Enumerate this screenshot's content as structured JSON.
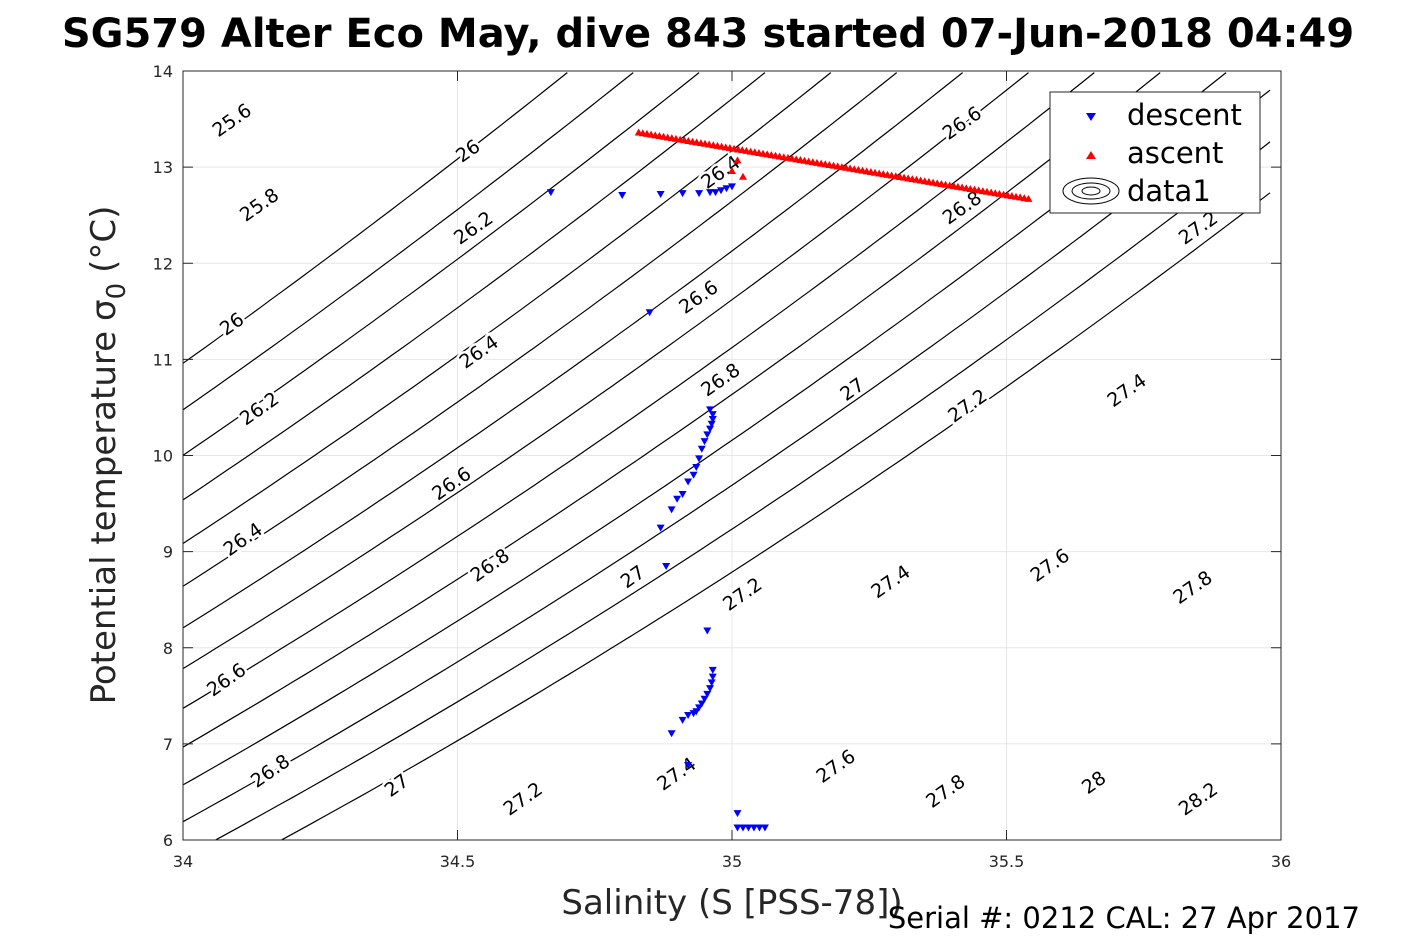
{
  "chart_data": {
    "type": "scatter",
    "title": "SG579 Alter Eco May, dive 843 started 07-Jun-2018 04:49",
    "xlabel": "Salinity (S [PSS-78])",
    "ylabel": "Potential temperature",
    "ylabel_symbol": "σ",
    "ylabel_subscript": "0",
    "ylabel_unit": "(°C)",
    "footer": "Serial #: 0212  CAL: 27 Apr 2017",
    "xlim": [
      34,
      36
    ],
    "ylim": [
      6,
      14
    ],
    "x_ticks": [
      34,
      34.5,
      35,
      35.5,
      36
    ],
    "x_tick_labels": [
      "34",
      "34.5",
      "35",
      "35.5",
      "36"
    ],
    "y_ticks": [
      6,
      7,
      8,
      9,
      10,
      11,
      12,
      13,
      14
    ],
    "y_tick_labels": [
      "6",
      "7",
      "8",
      "9",
      "10",
      "11",
      "12",
      "13",
      "14"
    ],
    "grid": true,
    "legend_position": "top-right",
    "colors": {
      "descent": "#0000ff",
      "ascent": "#ff0000",
      "contour": "#000000",
      "grid": "#e6e6e6"
    },
    "series": [
      {
        "name": "descent",
        "marker": "triangle-down",
        "color": "#0000ff",
        "points": [
          [
            34.67,
            12.74
          ],
          [
            34.8,
            12.71
          ],
          [
            34.87,
            12.72
          ],
          [
            34.91,
            12.73
          ],
          [
            34.94,
            12.73
          ],
          [
            34.96,
            12.74
          ],
          [
            34.97,
            12.74
          ],
          [
            34.98,
            12.76
          ],
          [
            34.99,
            12.78
          ],
          [
            35.0,
            12.8
          ],
          [
            34.85,
            11.49
          ],
          [
            34.96,
            10.48
          ],
          [
            34.965,
            10.43
          ],
          [
            34.965,
            10.38
          ],
          [
            34.963,
            10.33
          ],
          [
            34.96,
            10.28
          ],
          [
            34.955,
            10.22
          ],
          [
            34.95,
            10.15
          ],
          [
            34.945,
            10.07
          ],
          [
            34.94,
            9.97
          ],
          [
            34.935,
            9.88
          ],
          [
            34.93,
            9.8
          ],
          [
            34.92,
            9.73
          ],
          [
            34.91,
            9.6
          ],
          [
            34.9,
            9.55
          ],
          [
            34.89,
            9.44
          ],
          [
            34.87,
            9.25
          ],
          [
            34.88,
            8.85
          ],
          [
            34.955,
            8.18
          ],
          [
            34.965,
            7.77
          ],
          [
            34.965,
            7.7
          ],
          [
            34.963,
            7.64
          ],
          [
            34.96,
            7.58
          ],
          [
            34.955,
            7.52
          ],
          [
            34.95,
            7.47
          ],
          [
            34.945,
            7.42
          ],
          [
            34.94,
            7.38
          ],
          [
            34.935,
            7.34
          ],
          [
            34.93,
            7.32
          ],
          [
            34.92,
            7.3
          ],
          [
            34.91,
            7.25
          ],
          [
            34.89,
            7.11
          ],
          [
            34.92,
            6.78
          ],
          [
            35.01,
            6.28
          ],
          [
            35.01,
            6.13
          ],
          [
            35.02,
            6.13
          ],
          [
            35.03,
            6.13
          ],
          [
            35.04,
            6.13
          ],
          [
            35.05,
            6.13
          ],
          [
            35.06,
            6.13
          ]
        ]
      },
      {
        "name": "ascent",
        "marker": "triangle-up",
        "color": "#ff0000",
        "line": {
          "x0": 34.83,
          "y0": 13.36,
          "x1": 35.54,
          "y1": 12.67,
          "count": 95
        },
        "extra_points": [
          [
            35.01,
            13.07
          ],
          [
            35.02,
            12.9
          ],
          [
            35.0,
            12.96
          ]
        ]
      },
      {
        "name": "data1",
        "type": "contour",
        "quantity": "sigma0",
        "levels": [
          25.6,
          25.8,
          26,
          26.2,
          26.4,
          26.6,
          26.8,
          27,
          27.2,
          27.4,
          27.6,
          27.8,
          28,
          28.2
        ]
      }
    ],
    "contour_labels": [
      {
        "text": "25.6",
        "x": 34.09,
        "y": 13.48
      },
      {
        "text": "26",
        "x": 34.52,
        "y": 13.16
      },
      {
        "text": "26.6",
        "x": 35.42,
        "y": 13.45
      },
      {
        "text": "25.8",
        "x": 34.14,
        "y": 12.6
      },
      {
        "text": "26.2",
        "x": 34.53,
        "y": 12.36
      },
      {
        "text": "26.4",
        "x": 34.98,
        "y": 12.94
      },
      {
        "text": "26.8",
        "x": 35.42,
        "y": 12.57
      },
      {
        "text": "27.2",
        "x": 35.85,
        "y": 12.36
      },
      {
        "text": "26",
        "x": 34.09,
        "y": 11.36
      },
      {
        "text": "26.6",
        "x": 34.94,
        "y": 11.64
      },
      {
        "text": "26.4",
        "x": 34.54,
        "y": 11.07
      },
      {
        "text": "26.8",
        "x": 34.98,
        "y": 10.78
      },
      {
        "text": "27",
        "x": 35.22,
        "y": 10.68
      },
      {
        "text": "27.2",
        "x": 35.43,
        "y": 10.51
      },
      {
        "text": "27.4",
        "x": 35.72,
        "y": 10.67
      },
      {
        "text": "26.2",
        "x": 34.14,
        "y": 10.48
      },
      {
        "text": "26.6",
        "x": 34.49,
        "y": 9.7
      },
      {
        "text": "26.4",
        "x": 34.11,
        "y": 9.12
      },
      {
        "text": "26.8",
        "x": 34.56,
        "y": 8.85
      },
      {
        "text": "27",
        "x": 34.82,
        "y": 8.73
      },
      {
        "text": "27.2",
        "x": 35.02,
        "y": 8.55
      },
      {
        "text": "27.4",
        "x": 35.29,
        "y": 8.68
      },
      {
        "text": "27.6",
        "x": 35.58,
        "y": 8.85
      },
      {
        "text": "27.8",
        "x": 35.84,
        "y": 8.62
      },
      {
        "text": "26.6",
        "x": 34.08,
        "y": 7.66
      },
      {
        "text": "26.8",
        "x": 34.16,
        "y": 6.71
      },
      {
        "text": "27",
        "x": 34.39,
        "y": 6.56
      },
      {
        "text": "27.2",
        "x": 34.62,
        "y": 6.42
      },
      {
        "text": "27.4",
        "x": 34.9,
        "y": 6.68
      },
      {
        "text": "27.6",
        "x": 35.19,
        "y": 6.76
      },
      {
        "text": "27.8",
        "x": 35.39,
        "y": 6.5
      },
      {
        "text": "28",
        "x": 35.66,
        "y": 6.59
      },
      {
        "text": "28.2",
        "x": 35.85,
        "y": 6.42
      }
    ]
  }
}
